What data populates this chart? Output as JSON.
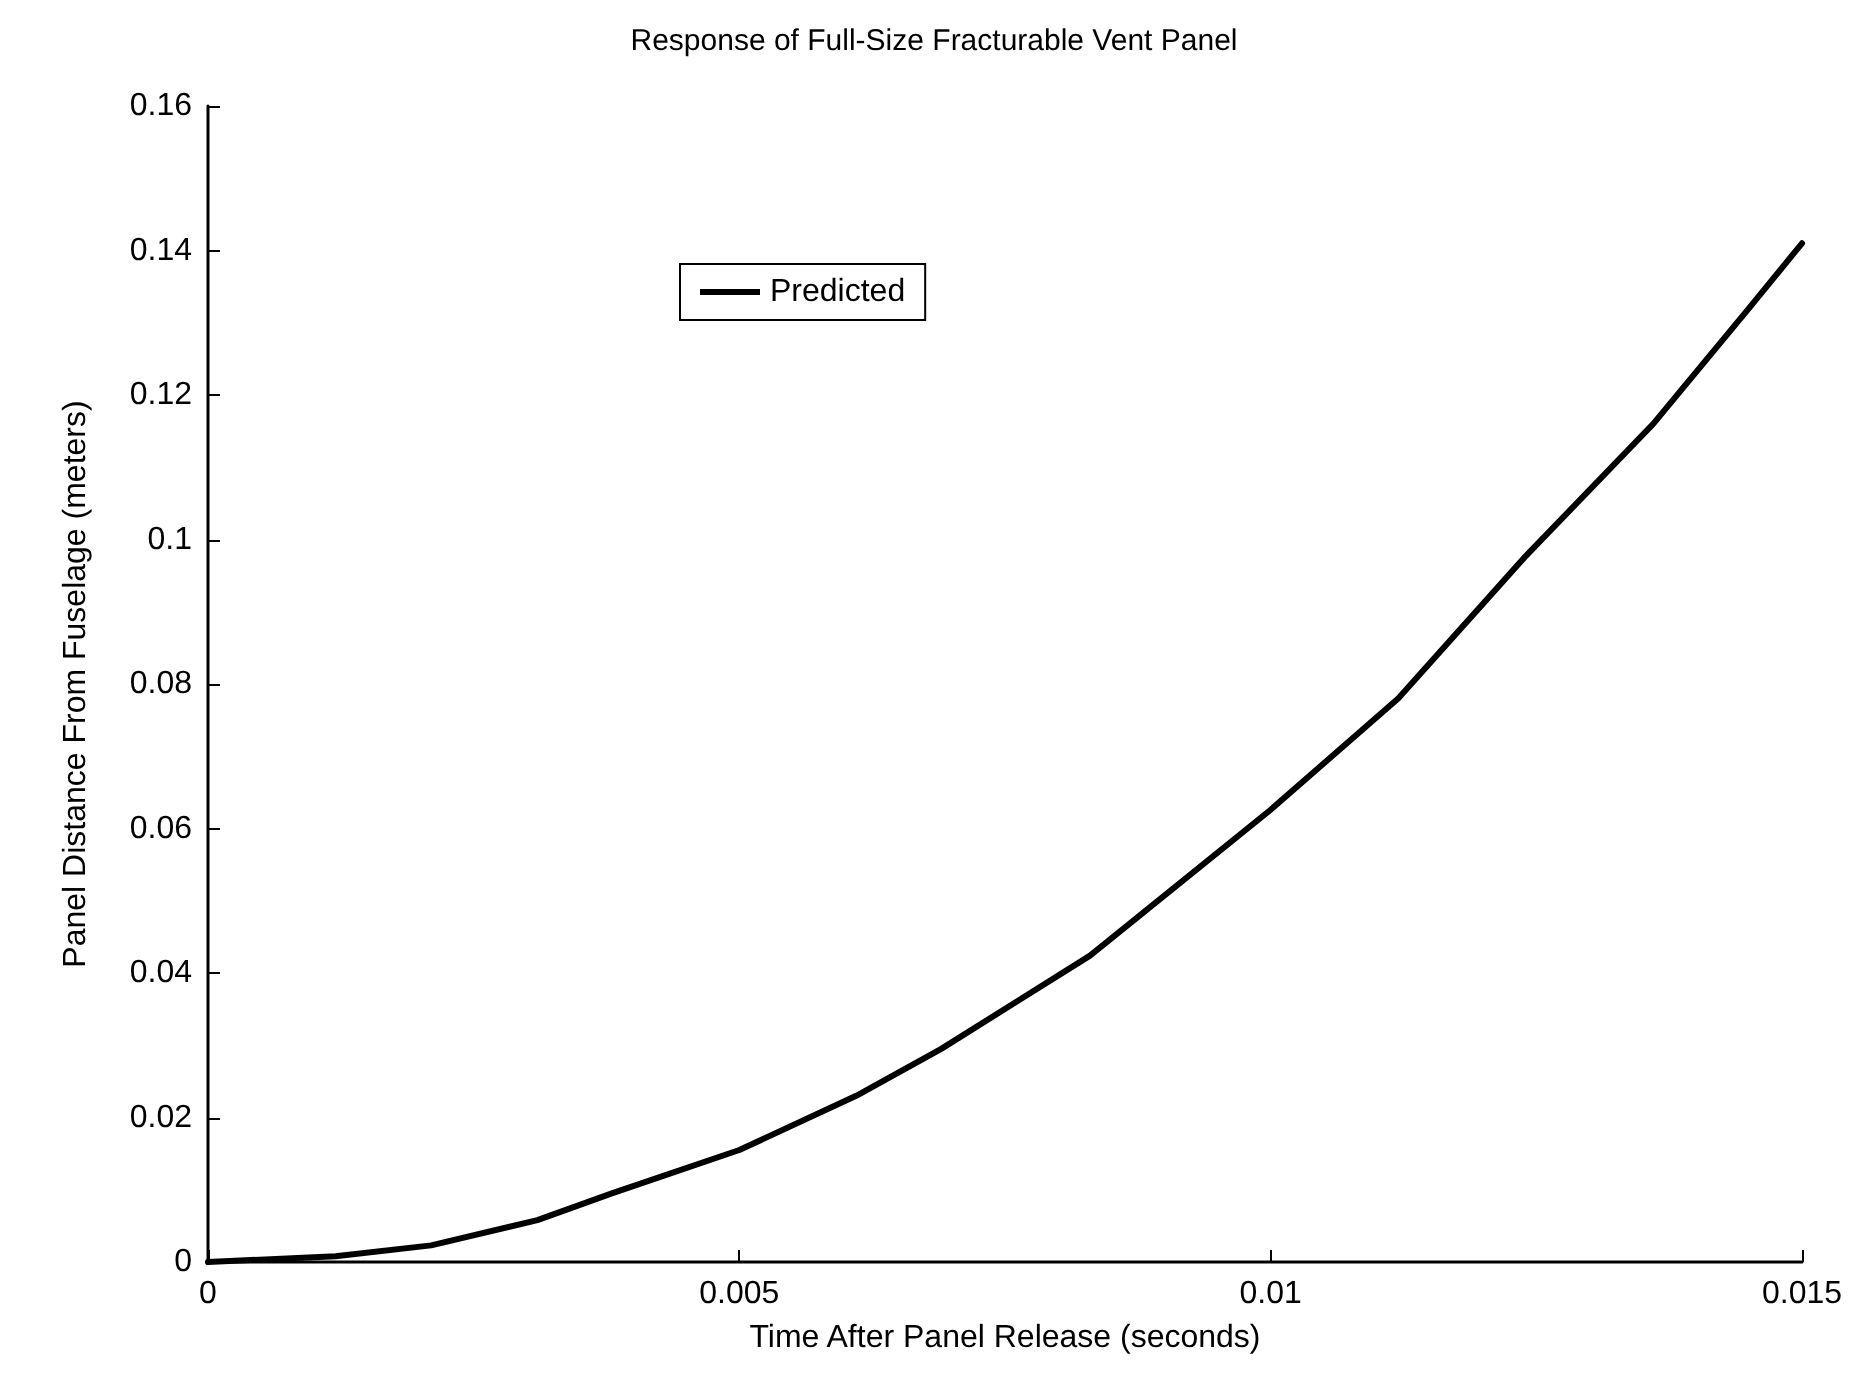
{
  "chart_data": {
    "type": "line",
    "title": "Response of Full-Size Fracturable Vent Panel",
    "xlabel": "Time After Panel Release (seconds)",
    "ylabel": "Panel Distance From Fuselage (meters)",
    "x": [
      0,
      0.0012,
      0.0021,
      0.0031,
      0.0038,
      0.005,
      0.0061,
      0.0069,
      0.0083,
      0.01,
      0.0112,
      0.0124,
      0.0136,
      0.0145,
      0.015
    ],
    "series": [
      {
        "name": "Predicted",
        "color": "#000000",
        "values": [
          0,
          0.0008,
          0.0023,
          0.0058,
          0.0095,
          0.0155,
          0.023,
          0.0295,
          0.0424,
          0.0626,
          0.078,
          0.0977,
          0.116,
          0.132,
          0.141
        ]
      }
    ],
    "xlim": [
      0,
      0.015
    ],
    "xticks": [
      0,
      0.005,
      0.01,
      0.015
    ],
    "ylim": [
      0,
      0.16
    ],
    "yticks": [
      0,
      0.02,
      0.04,
      0.06,
      0.08,
      0.1,
      0.12,
      0.14,
      0.16
    ],
    "grid": false,
    "legend": "top",
    "marker": "none",
    "line_style": "solid"
  }
}
